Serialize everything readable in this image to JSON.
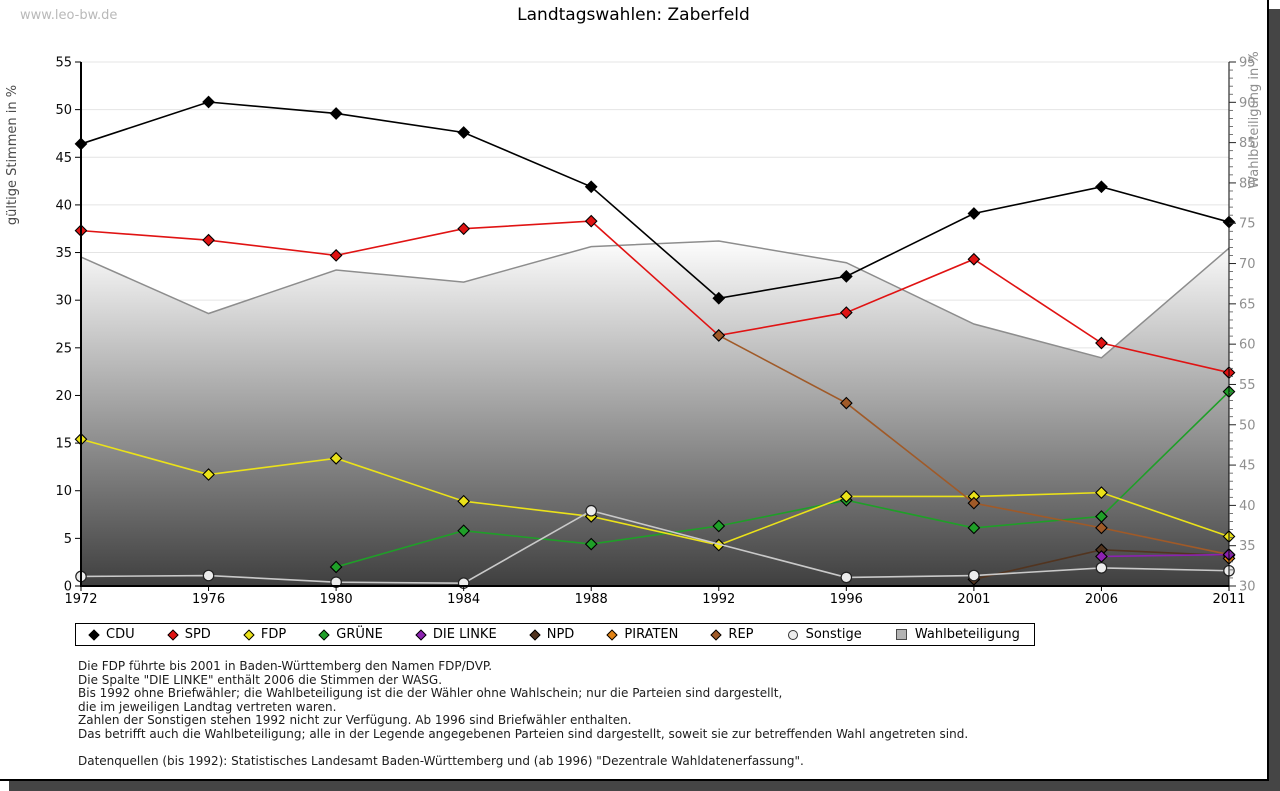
{
  "header": {
    "site": "www.leo-bw.de",
    "title": "Landtagswahlen: Zaberfeld"
  },
  "chart_data": {
    "type": "line",
    "title": "Landtagswahlen: Zaberfeld",
    "categories": [
      "1972",
      "1976",
      "1980",
      "1984",
      "1988",
      "1992",
      "1996",
      "2001",
      "2006",
      "2011"
    ],
    "left_axis": {
      "label": "gültige Stimmen in %",
      "min": 0,
      "max": 55,
      "step": 5,
      "ticks": [
        0,
        5,
        10,
        15,
        20,
        25,
        30,
        35,
        40,
        45,
        50,
        55
      ]
    },
    "right_axis": {
      "label": "Wahlbeteiligung in %",
      "min": 30,
      "max": 95,
      "step": 5,
      "ticks": [
        30,
        35,
        40,
        45,
        50,
        55,
        60,
        65,
        70,
        75,
        80,
        85,
        90,
        95
      ]
    },
    "grid": true,
    "legend_position": "bottom",
    "series": [
      {
        "name": "CDU",
        "axis": "left",
        "marker": "diamond",
        "color": "#000000",
        "values": [
          46.4,
          50.8,
          49.6,
          47.6,
          41.9,
          30.2,
          32.5,
          39.1,
          41.9,
          38.2
        ]
      },
      {
        "name": "SPD",
        "axis": "left",
        "marker": "diamond",
        "color": "#e01313",
        "values": [
          37.3,
          36.3,
          34.7,
          37.5,
          38.3,
          26.3,
          28.7,
          34.3,
          25.5,
          22.4
        ]
      },
      {
        "name": "FDP",
        "axis": "left",
        "marker": "diamond",
        "color": "#ebe219",
        "values": [
          15.4,
          11.7,
          13.4,
          8.9,
          7.3,
          4.3,
          9.4,
          9.4,
          9.8,
          5.2
        ]
      },
      {
        "name": "GRÜNE",
        "axis": "left",
        "marker": "diamond",
        "color": "#1f9f28",
        "values": [
          null,
          null,
          2.0,
          5.8,
          4.4,
          6.3,
          9.0,
          6.1,
          7.3,
          20.4
        ]
      },
      {
        "name": "DIE LINKE",
        "axis": "left",
        "marker": "diamond",
        "color": "#8c22b0",
        "values": [
          null,
          null,
          null,
          null,
          null,
          null,
          null,
          null,
          3.1,
          3.3
        ]
      },
      {
        "name": "NPD",
        "axis": "left",
        "marker": "diamond",
        "color": "#52341f",
        "values": [
          null,
          null,
          null,
          null,
          null,
          null,
          null,
          0.7,
          3.8,
          3.2
        ]
      },
      {
        "name": "PIRATEN",
        "axis": "left",
        "marker": "diamond",
        "color": "#e08214",
        "values": [
          null,
          null,
          null,
          null,
          null,
          null,
          null,
          null,
          null,
          2.9
        ]
      },
      {
        "name": "REP",
        "axis": "left",
        "marker": "diamond",
        "color": "#a05a28",
        "values": [
          null,
          null,
          null,
          null,
          null,
          26.3,
          19.2,
          8.7,
          6.1,
          3.3
        ]
      },
      {
        "name": "Sonstige",
        "axis": "left",
        "marker": "circle",
        "color": "#c9c9c9",
        "fill": "#ececec",
        "values": [
          1.0,
          1.1,
          0.4,
          0.3,
          7.9,
          null,
          0.9,
          1.1,
          1.9,
          1.6
        ]
      },
      {
        "name": "Wahlbeteiligung",
        "axis": "right",
        "type": "area",
        "color": "#8d8d8d",
        "values": [
          70.8,
          63.8,
          69.2,
          67.7,
          72.1,
          72.8,
          70.1,
          62.5,
          58.3,
          71.9
        ]
      }
    ]
  },
  "footer": {
    "lines": [
      "Die FDP führte bis 2001 in Baden-Württemberg den Namen FDP/DVP.",
      "Die Spalte \"DIE LINKE\" enthält 2006 die Stimmen der WASG.",
      "Bis 1992 ohne Briefwähler; die Wahlbeteiligung ist die der Wähler ohne Wahlschein; nur die Parteien sind dargestellt,",
      "die im jeweiligen Landtag vertreten waren.",
      "Zahlen der Sonstigen stehen 1992 nicht zur Verfügung. Ab 1996 sind Briefwähler enthalten.",
      "Das betrifft auch die Wahlbeteiligung; alle in der Legende angegebenen Parteien sind dargestellt, soweit sie zur betreffenden Wahl angetreten sind.",
      "",
      "Datenquellen (bis 1992): Statistisches Landesamt Baden-Württemberg und (ab 1996) \"Dezentrale Wahldatenerfassung\"."
    ]
  }
}
